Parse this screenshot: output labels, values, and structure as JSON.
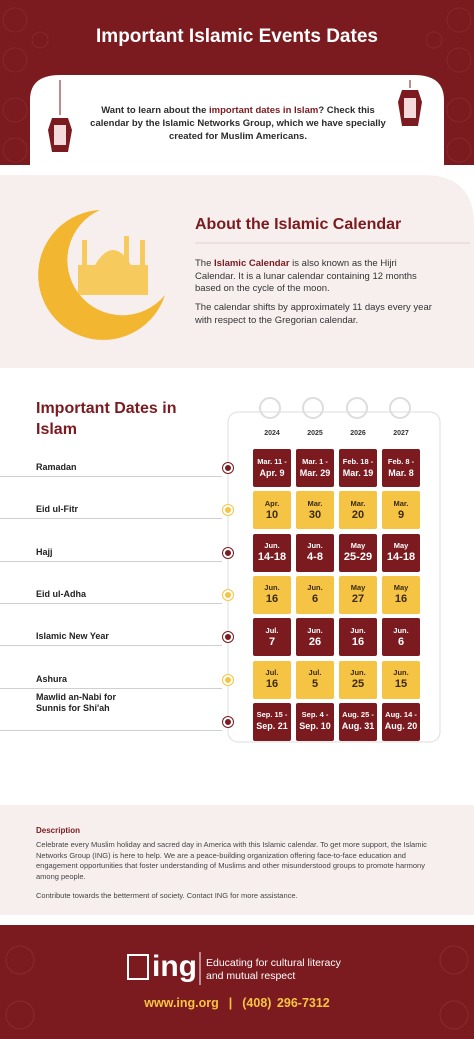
{
  "header": {
    "title": "Important Islamic Events Dates"
  },
  "intro": {
    "before": "Want to learn about the ",
    "highlight": "important dates in Islam",
    "after": "? Check this calendar by the Islamic Networks Group, which we have specially created for Muslim Americans."
  },
  "about": {
    "title": "About the Islamic Calendar",
    "paragraph_1": {
      "before": "The ",
      "highlight": "Islamic Calendar",
      "after": " is also known as the Hijri Calendar. It is a lunar calendar containing 12 months based on the cycle of the moon."
    },
    "paragraph_2": "The calendar shifts by approximately 11 days every year with respect to the Gregorian calendar."
  },
  "dates": {
    "title": "Important Dates in Islam",
    "years": [
      "2024",
      "2025",
      "2026",
      "2027"
    ],
    "rows": [
      {
        "label": "Ramadan",
        "color": "#7b1a1f",
        "cells": [
          [
            "Mar. 11 -",
            "Apr. 9"
          ],
          [
            "Mar. 1 -",
            "Mar. 29"
          ],
          [
            "Feb. 18 -",
            "Mar. 19"
          ],
          [
            "Feb. 8 -",
            "Mar. 8"
          ]
        ]
      },
      {
        "label": "Eid ul-Fitr",
        "color": "#f6c444",
        "cells": [
          [
            "Apr.",
            "10"
          ],
          [
            "Mar.",
            "30"
          ],
          [
            "Mar.",
            "20"
          ],
          [
            "Mar.",
            "9"
          ]
        ]
      },
      {
        "label": "Hajj",
        "color": "#7b1a1f",
        "cells": [
          [
            "Jun.",
            "14-18"
          ],
          [
            "Jun.",
            "4-8"
          ],
          [
            "May",
            "25-29"
          ],
          [
            "May",
            "14-18"
          ]
        ]
      },
      {
        "label": "Eid ul-Adha",
        "color": "#f6c444",
        "cells": [
          [
            "Jun.",
            "16"
          ],
          [
            "Jun.",
            "6"
          ],
          [
            "May",
            "27"
          ],
          [
            "May",
            "16"
          ]
        ]
      },
      {
        "label": "Islamic New Year",
        "color": "#7b1a1f",
        "cells": [
          [
            "Jul.",
            "7"
          ],
          [
            "Jun.",
            "26"
          ],
          [
            "Jun.",
            "16"
          ],
          [
            "Jun.",
            "6"
          ]
        ]
      },
      {
        "label": "Ashura",
        "color": "#f6c444",
        "cells": [
          [
            "Jul.",
            "16"
          ],
          [
            "Jul.",
            "5"
          ],
          [
            "Jun.",
            "25"
          ],
          [
            "Jun.",
            "15"
          ]
        ]
      },
      {
        "label": "Mawlid an-Nabi for Sunnis for Shi'ah",
        "color": "#7b1a1f",
        "cells": [
          [
            "Sep. 15 -",
            "Sep. 21"
          ],
          [
            "Sep. 4 -",
            "Sep. 10"
          ],
          [
            "Aug. 25 -",
            "Aug. 31"
          ],
          [
            "Aug. 14 -",
            "Aug. 20"
          ]
        ]
      }
    ]
  },
  "description": {
    "heading": "Description",
    "paragraph": "Celebrate every Muslim holiday and sacred day in America with this Islamic calendar. To get more support, the Islamic Networks Group (ING) is here to help. We are a peace-building organization offering face-to-face education and engagement opportunities that foster understanding of Muslims and other misunderstood groups to promote harmony among people.",
    "note": "Contribute towards the betterment of society. Contact ING for more assistance."
  },
  "footer": {
    "logo": "ing",
    "tagline": "Educating for cultural literacy and mutual respect",
    "website": "www.ing.org",
    "separator": "|",
    "phone": "(408) 296-7312"
  }
}
